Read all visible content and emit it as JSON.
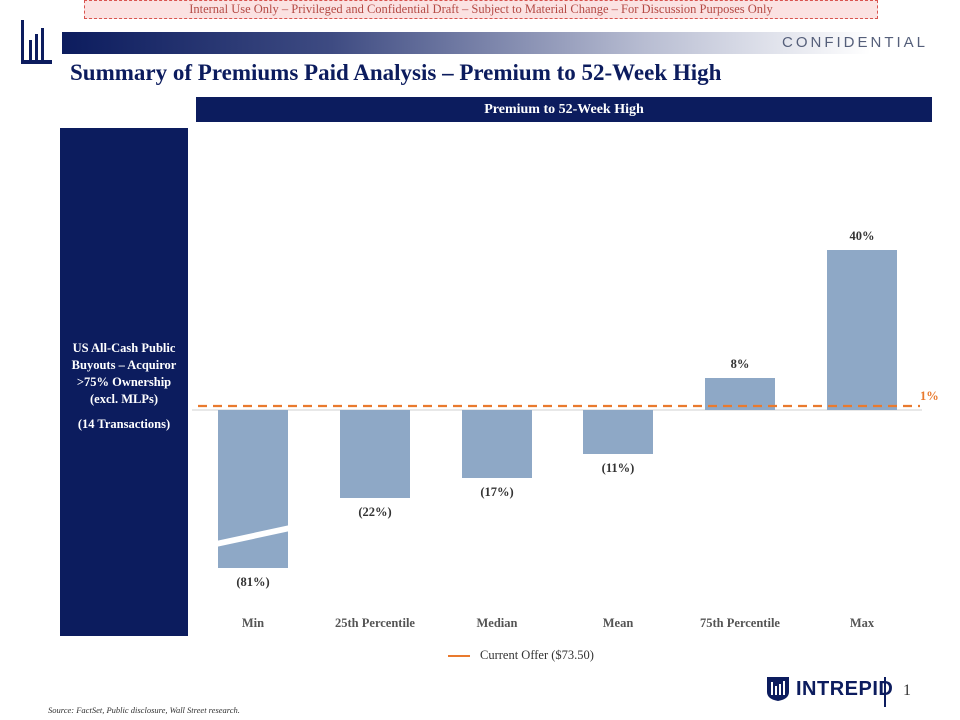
{
  "banner": "Internal Use Only – Privileged and Confidential Draft – Subject to Material Change – For Discussion Purposes Only",
  "confidential": "CONFIDENTIAL",
  "page_title": "Summary of Premiums Paid Analysis – Premium to 52-Week High",
  "side_panel": {
    "label": "US All-Cash Public Buyouts – Acquiror >75% Ownership (excl. MLPs)",
    "sublabel": "(14 Transactions)"
  },
  "legend": {
    "label": "Current Offer ($73.50)"
  },
  "brand": {
    "name": "INTREPID"
  },
  "page_number": "1",
  "source": "Source: FactSet, Public disclosure, Wall Street research.",
  "colors": {
    "navy": "#0c1c5e",
    "bar": "#8ea8c6",
    "reference": "#e97a2e"
  },
  "chart_data": {
    "type": "bar",
    "title": "Premium to 52-Week High",
    "categories": [
      "Min",
      "25th Percentile",
      "Median",
      "Mean",
      "75th Percentile",
      "Max"
    ],
    "values": [
      -81,
      -22,
      -17,
      -11,
      8,
      40
    ],
    "labels": [
      "(81%)",
      "(22%)",
      "(17%)",
      "(11%)",
      "8%",
      "40%"
    ],
    "axis_break_on": "Min",
    "reference_line": {
      "value": 1,
      "label": "1%",
      "style": "dashed",
      "color": "#e97a2e",
      "legend": "Current Offer ($73.50)"
    },
    "xlabel": "",
    "ylabel": ""
  }
}
